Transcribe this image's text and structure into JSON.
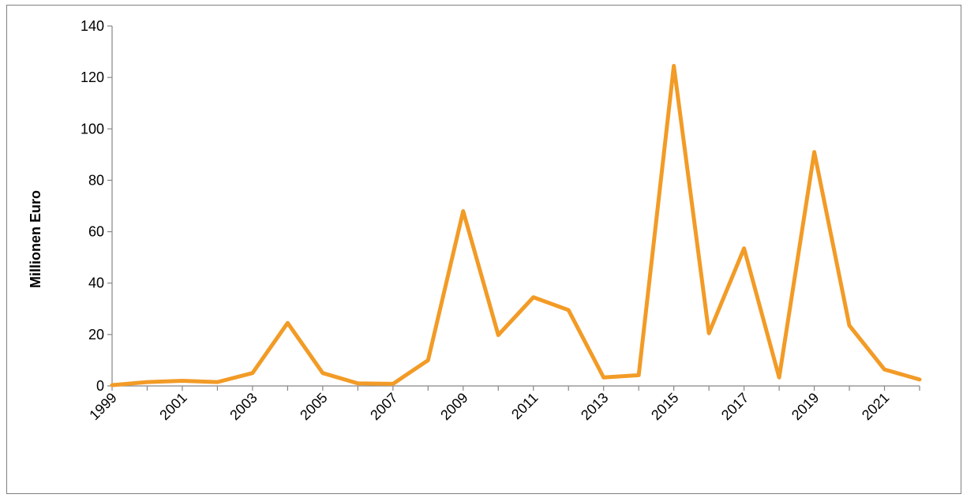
{
  "chart_data": {
    "type": "line",
    "title": "",
    "xlabel": "",
    "ylabel": "Millionen Euro",
    "x": [
      1999,
      2000,
      2001,
      2002,
      2003,
      2004,
      2005,
      2006,
      2007,
      2008,
      2009,
      2010,
      2011,
      2012,
      2013,
      2014,
      2015,
      2016,
      2017,
      2018,
      2019,
      2020,
      2021,
      2022
    ],
    "x_tick_labels": [
      "1999",
      "2001",
      "2003",
      "2005",
      "2007",
      "2009",
      "2011",
      "2013",
      "2015",
      "2017",
      "2019",
      "2021"
    ],
    "y_tick_labels": [
      "0",
      "20",
      "40",
      "60",
      "80",
      "100",
      "120",
      "140"
    ],
    "ylim": [
      0,
      140
    ],
    "grid": false,
    "legend": "none",
    "series": [
      {
        "color": "#f29b26",
        "values": [
          0.3,
          1.5,
          2.0,
          1.5,
          5.0,
          24.5,
          5.0,
          1.0,
          0.8,
          10.0,
          68.0,
          19.8,
          34.5,
          29.5,
          3.3,
          4.2,
          124.5,
          20.5,
          53.5,
          3.3,
          91.0,
          23.5,
          6.4,
          2.5
        ]
      }
    ]
  }
}
